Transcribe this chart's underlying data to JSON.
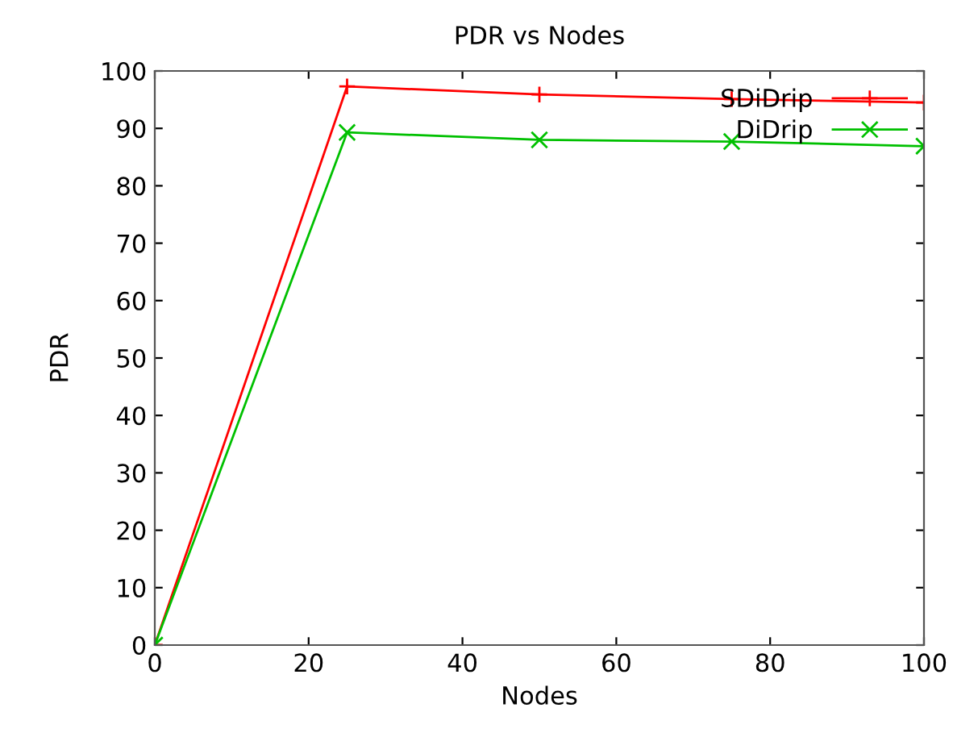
{
  "chart_data": {
    "type": "line",
    "title": "PDR vs Nodes",
    "xlabel": "Nodes",
    "ylabel": "PDR",
    "x": [
      0,
      25,
      50,
      75,
      100
    ],
    "series": [
      {
        "name": "SDiDrip",
        "color": "#ff0000",
        "marker": "plus",
        "values": [
          0,
          97.3,
          95.9,
          95.1,
          94.5
        ]
      },
      {
        "name": "DiDrip",
        "color": "#00c000",
        "marker": "cross",
        "values": [
          0,
          89.3,
          88,
          87.7,
          86.9
        ]
      }
    ],
    "xlim": [
      0,
      100
    ],
    "xticks": [
      0,
      20,
      40,
      60,
      80,
      100
    ],
    "ylim": [
      0,
      100
    ],
    "yticks": [
      0,
      10,
      20,
      30,
      40,
      50,
      60,
      70,
      80,
      90,
      100
    ],
    "grid": false,
    "legend": "top right",
    "line_style": "solid"
  }
}
